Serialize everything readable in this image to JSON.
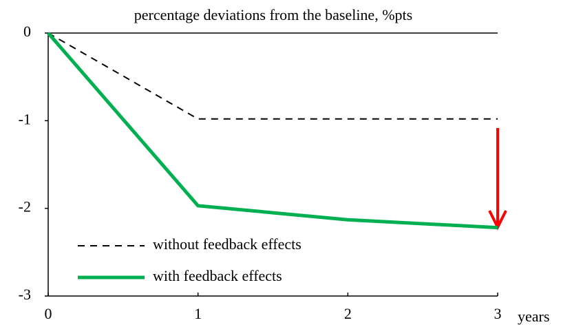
{
  "chart_data": {
    "type": "line",
    "title": "percentage deviations from the baseline, %pts",
    "x_label": "years",
    "x": [
      0,
      1,
      2,
      3
    ],
    "series": [
      {
        "name": "without feedback effects",
        "color": "#000000",
        "style": "dashed",
        "values": [
          0,
          -0.98,
          -0.98,
          -0.98
        ]
      },
      {
        "name": "with feedback effects",
        "color": "#00b050",
        "style": "solid",
        "values": [
          0,
          -1.97,
          -2.13,
          -2.22
        ]
      }
    ],
    "xlim": [
      0,
      3
    ],
    "xticks": [
      0,
      1,
      2,
      3
    ],
    "ylim": [
      -3,
      0
    ],
    "yticks": [
      -3,
      -2,
      -1,
      0
    ],
    "legend": "lower left"
  }
}
